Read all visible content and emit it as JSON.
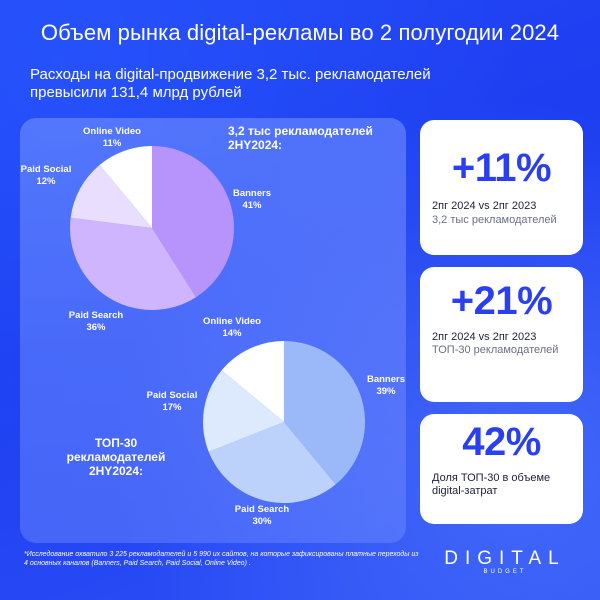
{
  "header": {
    "title": "Объем рынка digital-рекламы во 2 полугодии 2024",
    "subtitle": "Расходы на digital-продвижение 3,2 тыс. рекламодателей превысили 131,4 млрд рублей"
  },
  "chart_data": [
    {
      "type": "pie",
      "title": "3,2 тыс рекламодателей 2HY2024:",
      "categories": [
        "Banners",
        "Paid Search",
        "Paid Social",
        "Online Video"
      ],
      "values": [
        41,
        36,
        12,
        11
      ],
      "value_labels": [
        "41%",
        "36%",
        "12%",
        "11%"
      ],
      "colors": [
        "#b794fb",
        "#cfb5fd",
        "#e9defe",
        "#ffffff"
      ]
    },
    {
      "type": "pie",
      "title": "ТОП-30 рекламодателей 2HY2024:",
      "categories": [
        "Banners",
        "Paid Search",
        "Paid Social",
        "Online Video"
      ],
      "values": [
        39,
        30,
        17,
        14
      ],
      "value_labels": [
        "39%",
        "30%",
        "17%",
        "14%"
      ],
      "colors": [
        "#9bb9f8",
        "#bcd2fb",
        "#dde9fd",
        "#ffffff"
      ]
    }
  ],
  "stats": [
    {
      "value": "+11%",
      "line1": "2пг 2024 vs 2пг 2023",
      "line2": "3,2 тыс рекламодателей"
    },
    {
      "value": "+21%",
      "line1": "2пг 2024 vs 2пг 2023",
      "line2": "ТОП-30 рекламодателей"
    },
    {
      "value": "42%",
      "line1": "Доля ТОП-30 в объеме",
      "line2": "digital-затрат"
    }
  ],
  "footnote": "*Исследование охватило 3 225 рекламодателей и 5 990 их сайтов, на которые зафиксированы платные переходы из 4 основных каналов (Banners, Paid Search, Paid Social, Online Video) .",
  "logo": {
    "main": "DIGITAL",
    "sub": "BUDGET"
  }
}
